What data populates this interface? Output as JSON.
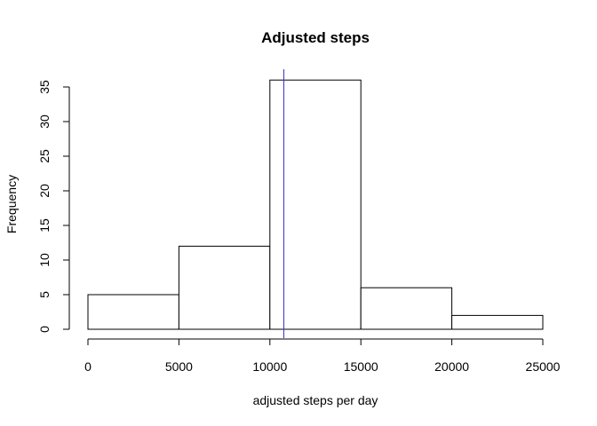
{
  "chart_data": {
    "type": "histogram",
    "title": "Adjusted steps",
    "xlabel": "adjusted steps per day",
    "ylabel": "Frequency",
    "bins": [
      {
        "start": 0,
        "end": 5000,
        "count": 5
      },
      {
        "start": 5000,
        "end": 10000,
        "count": 12
      },
      {
        "start": 10000,
        "end": 15000,
        "count": 36
      },
      {
        "start": 15000,
        "end": 20000,
        "count": 6
      },
      {
        "start": 20000,
        "end": 25000,
        "count": 2
      }
    ],
    "xlim": [
      0,
      25000
    ],
    "ylim": [
      0,
      35
    ],
    "x_ticks": [
      0,
      5000,
      10000,
      15000,
      20000,
      25000
    ],
    "y_ticks": [
      0,
      5,
      10,
      15,
      20,
      25,
      30,
      35
    ],
    "reference_line": {
      "x": 10766,
      "color": "#3333cc"
    },
    "grid": false,
    "bar_fill": "#ffffff",
    "bar_stroke": "#000000"
  }
}
